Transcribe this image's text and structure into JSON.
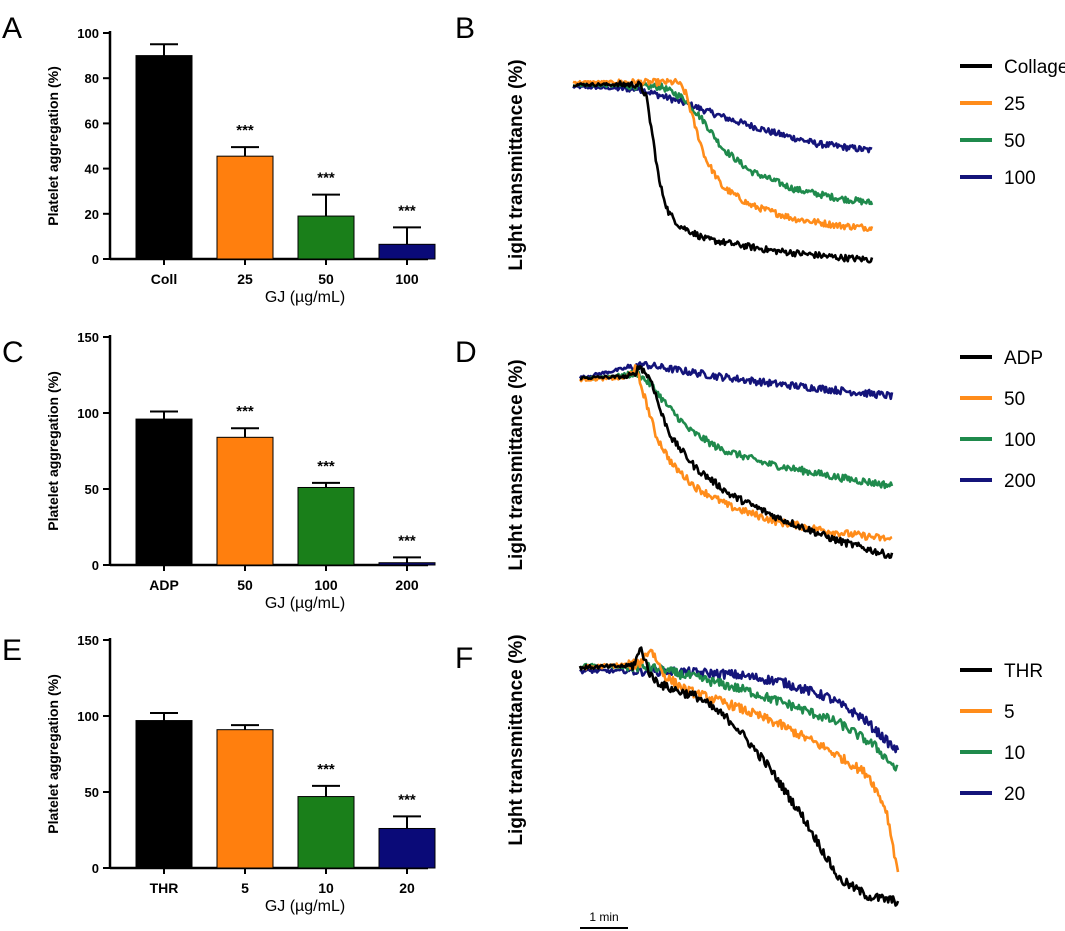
{
  "chart_data": [
    {
      "panel": "A",
      "type": "bar",
      "ylabel": "Platelet aggregation (%)",
      "xlabel": "GJ (µg/mL)",
      "ylim": [
        0,
        100
      ],
      "yticks": [
        0,
        20,
        40,
        60,
        80,
        100
      ],
      "categories": [
        "Coll",
        "25",
        "50",
        "100"
      ],
      "values": [
        90,
        45.5,
        19,
        6.5
      ],
      "errors": [
        5,
        4,
        9.5,
        7.5
      ],
      "significance": [
        "",
        "***",
        "***",
        "***"
      ],
      "colors": [
        "#000000",
        "#ff7f0e",
        "#1a7f1a",
        "#0a0a78"
      ]
    },
    {
      "panel": "B",
      "type": "line",
      "ylabel": "Light transmittance (%)",
      "legend": [
        "Collagen",
        "25",
        "50",
        "100"
      ],
      "colors": [
        "#000000",
        "#ff8c1a",
        "#1f8a4c",
        "#14147a"
      ],
      "series": [
        {
          "name": "Collagen",
          "points": [
            [
              0,
              78
            ],
            [
              60,
              78
            ],
            [
              66,
              73
            ],
            [
              72,
              55
            ],
            [
              78,
              35
            ],
            [
              86,
              22
            ],
            [
              96,
              16
            ],
            [
              120,
              10
            ],
            [
              180,
              5
            ],
            [
              240,
              2
            ],
            [
              270,
              1
            ]
          ]
        },
        {
          "name": "25",
          "points": [
            [
              0,
              79
            ],
            [
              95,
              79
            ],
            [
              102,
              74
            ],
            [
              110,
              60
            ],
            [
              120,
              45
            ],
            [
              135,
              33
            ],
            [
              160,
              25
            ],
            [
              200,
              19
            ],
            [
              240,
              16
            ],
            [
              270,
              15
            ]
          ]
        },
        {
          "name": "50",
          "points": [
            [
              0,
              78
            ],
            [
              80,
              77
            ],
            [
              100,
              72
            ],
            [
              118,
              62
            ],
            [
              135,
              50
            ],
            [
              160,
              40
            ],
            [
              200,
              32
            ],
            [
              240,
              28
            ],
            [
              270,
              26
            ]
          ]
        },
        {
          "name": "100",
          "points": [
            [
              0,
              77
            ],
            [
              60,
              76
            ],
            [
              100,
              70
            ],
            [
              140,
              63
            ],
            [
              180,
              57
            ],
            [
              220,
              52
            ],
            [
              270,
              49
            ]
          ]
        }
      ]
    },
    {
      "panel": "C",
      "type": "bar",
      "ylabel": "Platelet aggregation (%)",
      "xlabel": "GJ (µg/mL)",
      "ylim": [
        0,
        150
      ],
      "yticks": [
        0,
        50,
        100,
        150
      ],
      "categories": [
        "ADP",
        "50",
        "100",
        "200"
      ],
      "values": [
        96,
        84,
        51,
        1.5
      ],
      "errors": [
        5,
        6,
        3,
        3.5
      ],
      "significance": [
        "",
        "***",
        "***",
        "***"
      ],
      "colors": [
        "#000000",
        "#ff7f0e",
        "#1a7f1a",
        "#0a0a78"
      ]
    },
    {
      "panel": "D",
      "type": "line",
      "ylabel": "Light transmittance (%)",
      "legend": [
        "ADP",
        "50",
        "100",
        "200"
      ],
      "colors": [
        "#000000",
        "#ff8c1a",
        "#1f8a4c",
        "#14147a"
      ],
      "series": [
        {
          "name": "ADP",
          "points": [
            [
              0,
              123
            ],
            [
              45,
              124
            ],
            [
              52,
              131
            ],
            [
              62,
              121
            ],
            [
              70,
              100
            ],
            [
              80,
              82
            ],
            [
              100,
              63
            ],
            [
              130,
              45
            ],
            [
              170,
              30
            ],
            [
              220,
              15
            ],
            [
              270,
              4
            ]
          ]
        },
        {
          "name": "50",
          "points": [
            [
              0,
              122
            ],
            [
              40,
              123
            ],
            [
              48,
              130
            ],
            [
              56,
              110
            ],
            [
              66,
              84
            ],
            [
              80,
              65
            ],
            [
              100,
              50
            ],
            [
              130,
              37
            ],
            [
              170,
              27
            ],
            [
              220,
              20
            ],
            [
              270,
              15
            ]
          ]
        },
        {
          "name": "100",
          "points": [
            [
              0,
              122
            ],
            [
              50,
              126
            ],
            [
              62,
              118
            ],
            [
              75,
              105
            ],
            [
              95,
              88
            ],
            [
              120,
              76
            ],
            [
              160,
              66
            ],
            [
              220,
              57
            ],
            [
              270,
              51
            ]
          ]
        },
        {
          "name": "200",
          "points": [
            [
              0,
              123
            ],
            [
              55,
              132
            ],
            [
              70,
              130
            ],
            [
              120,
              124
            ],
            [
              170,
              119
            ],
            [
              220,
              115
            ],
            [
              270,
              111
            ]
          ]
        }
      ]
    },
    {
      "panel": "E",
      "type": "bar",
      "ylabel": "Platelet aggregation (%)",
      "xlabel": "GJ (µg/mL)",
      "ylim": [
        0,
        150
      ],
      "yticks": [
        0,
        50,
        100,
        150
      ],
      "categories": [
        "THR",
        "5",
        "10",
        "20"
      ],
      "values": [
        97,
        91,
        47,
        26
      ],
      "errors": [
        5,
        3,
        7,
        8
      ],
      "significance": [
        "",
        "",
        "***",
        "***"
      ],
      "colors": [
        "#000000",
        "#ff7f0e",
        "#1a7f1a",
        "#0a0a78"
      ]
    },
    {
      "panel": "F",
      "type": "line",
      "ylabel": "Light transmittance (%)",
      "legend": [
        "THR",
        "5",
        "10",
        "20"
      ],
      "colors": [
        "#000000",
        "#ff8c1a",
        "#1f8a4c",
        "#14147a"
      ],
      "scale_bar": "1 min",
      "series": [
        {
          "name": "THR",
          "points": [
            [
              0,
              117
            ],
            [
              45,
              118
            ],
            [
              52,
              128
            ],
            [
              60,
              112
            ],
            [
              72,
              106
            ],
            [
              100,
              100
            ],
            [
              130,
              85
            ],
            [
              160,
              60
            ],
            [
              190,
              30
            ],
            [
              220,
              -5
            ],
            [
              245,
              -15
            ],
            [
              270,
              -18
            ]
          ]
        },
        {
          "name": "5",
          "points": [
            [
              0,
              117
            ],
            [
              50,
              119
            ],
            [
              60,
              128
            ],
            [
              72,
              112
            ],
            [
              90,
              104
            ],
            [
              130,
              95
            ],
            [
              170,
              84
            ],
            [
              210,
              70
            ],
            [
              245,
              55
            ],
            [
              260,
              35
            ],
            [
              272,
              -8
            ]
          ]
        },
        {
          "name": "10",
          "points": [
            [
              0,
              118
            ],
            [
              60,
              117
            ],
            [
              100,
              111
            ],
            [
              140,
              104
            ],
            [
              180,
              95
            ],
            [
              220,
              85
            ],
            [
              250,
              72
            ],
            [
              272,
              56
            ]
          ]
        },
        {
          "name": "20",
          "points": [
            [
              0,
              115
            ],
            [
              70,
              115
            ],
            [
              130,
              113
            ],
            [
              170,
              109
            ],
            [
              210,
              100
            ],
            [
              240,
              88
            ],
            [
              272,
              67
            ]
          ]
        }
      ]
    }
  ]
}
